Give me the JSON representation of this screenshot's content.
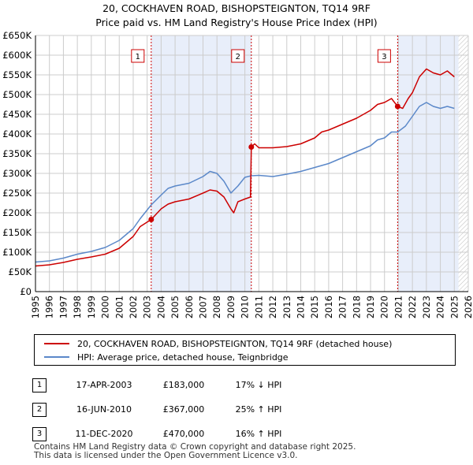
{
  "chart_data": {
    "type": "line",
    "title": "20, COCKHAVEN ROAD, BISHOPSTEIGNTON, TQ14 9RF",
    "subtitle": "Price paid vs. HM Land Registry's House Price Index (HPI)",
    "xlim": [
      1995,
      2026
    ],
    "ylim": [
      0,
      650000
    ],
    "x_ticks": [
      "1995",
      "1996",
      "1997",
      "1998",
      "1999",
      "2000",
      "2001",
      "2002",
      "2003",
      "2004",
      "2005",
      "2006",
      "2007",
      "2008",
      "2009",
      "2010",
      "2011",
      "2012",
      "2013",
      "2014",
      "2015",
      "2016",
      "2017",
      "2018",
      "2019",
      "2020",
      "2021",
      "2022",
      "2023",
      "2024",
      "2025",
      "2026"
    ],
    "y_ticks": [
      {
        "value": 0,
        "label": "£0"
      },
      {
        "value": 50000,
        "label": "£50K"
      },
      {
        "value": 100000,
        "label": "£100K"
      },
      {
        "value": 150000,
        "label": "£150K"
      },
      {
        "value": 200000,
        "label": "£200K"
      },
      {
        "value": 250000,
        "label": "£250K"
      },
      {
        "value": 300000,
        "label": "£300K"
      },
      {
        "value": 350000,
        "label": "£350K"
      },
      {
        "value": 400000,
        "label": "£400K"
      },
      {
        "value": 450000,
        "label": "£450K"
      },
      {
        "value": 500000,
        "label": "£500K"
      },
      {
        "value": 550000,
        "label": "£550K"
      },
      {
        "value": 600000,
        "label": "£600K"
      },
      {
        "value": 650000,
        "label": "£650K"
      }
    ],
    "grid": true,
    "shaded_ranges": [
      [
        2003.29,
        2010.46
      ],
      [
        2020.94,
        2025.3
      ]
    ],
    "future_hatch_from": 2025.3,
    "series": [
      {
        "name": "20, COCKHAVEN ROAD, BISHOPSTEIGNTON, TQ14 9RF (detached house)",
        "color": "#cc0000",
        "x": [
          1995,
          1996,
          1997,
          1998,
          1999,
          2000,
          2001,
          2002,
          2002.5,
          2003.29,
          2004,
          2004.5,
          2005,
          2006,
          2007,
          2007.5,
          2008,
          2008.5,
          2009,
          2009.2,
          2009.5,
          2010,
          2010.4,
          2010.46,
          2010.7,
          2011,
          2012,
          2013,
          2014,
          2015,
          2015.5,
          2016,
          2017,
          2018,
          2019,
          2019.5,
          2020,
          2020.5,
          2020.94,
          2021.3,
          2021.7,
          2022,
          2022.5,
          2023,
          2023.5,
          2024,
          2024.5,
          2025
        ],
        "y": [
          65000,
          68000,
          74000,
          82000,
          88000,
          95000,
          110000,
          140000,
          165000,
          183000,
          210000,
          222000,
          228000,
          235000,
          250000,
          258000,
          255000,
          240000,
          210000,
          200000,
          228000,
          235000,
          240000,
          367000,
          375000,
          365000,
          365000,
          368000,
          375000,
          390000,
          405000,
          410000,
          425000,
          440000,
          460000,
          475000,
          480000,
          490000,
          470000,
          465000,
          490000,
          505000,
          545000,
          565000,
          555000,
          550000,
          560000,
          545000
        ]
      },
      {
        "name": "HPI: Average price, detached house, Teignbridge",
        "color": "#5b88c9",
        "x": [
          1995,
          1996,
          1997,
          1998,
          1999,
          2000,
          2001,
          2002,
          2002.5,
          2003.29,
          2004,
          2004.5,
          2005,
          2006,
          2007,
          2007.5,
          2008,
          2008.5,
          2009,
          2009.5,
          2010,
          2010.46,
          2011,
          2012,
          2013,
          2014,
          2015,
          2016,
          2017,
          2018,
          2019,
          2019.5,
          2020,
          2020.5,
          2020.94,
          2021.5,
          2022,
          2022.5,
          2023,
          2023.5,
          2024,
          2024.5,
          2025
        ],
        "y": [
          75000,
          78000,
          85000,
          95000,
          102000,
          112000,
          130000,
          160000,
          185000,
          220000,
          245000,
          262000,
          268000,
          275000,
          292000,
          305000,
          300000,
          280000,
          250000,
          268000,
          290000,
          294000,
          295000,
          292000,
          298000,
          305000,
          315000,
          325000,
          340000,
          355000,
          370000,
          385000,
          390000,
          405000,
          405000,
          420000,
          445000,
          470000,
          480000,
          470000,
          465000,
          470000,
          465000
        ]
      }
    ],
    "sales": [
      {
        "num": "1",
        "x": 2003.29,
        "y": 183000,
        "date": "17-APR-2003",
        "price": "£183,000",
        "hpi": "17% ↓ HPI"
      },
      {
        "num": "2",
        "x": 2010.46,
        "y": 367000,
        "date": "16-JUN-2010",
        "price": "£367,000",
        "hpi": "25% ↑ HPI"
      },
      {
        "num": "3",
        "x": 2020.94,
        "y": 470000,
        "date": "11-DEC-2020",
        "price": "£470,000",
        "hpi": "16% ↑ HPI"
      }
    ]
  },
  "legend": {
    "series1": "20, COCKHAVEN ROAD, BISHOPSTEIGNTON, TQ14 9RF (detached house)",
    "series2": "HPI: Average price, detached house, Teignbridge"
  },
  "footer": {
    "line1": "Contains HM Land Registry data © Crown copyright and database right 2025.",
    "line2": "This data is licensed under the Open Government Licence v3.0."
  },
  "colors": {
    "property": "#cc0000",
    "hpi": "#5b88c9",
    "shade": "#e8eefa",
    "grid": "#cccccc"
  }
}
